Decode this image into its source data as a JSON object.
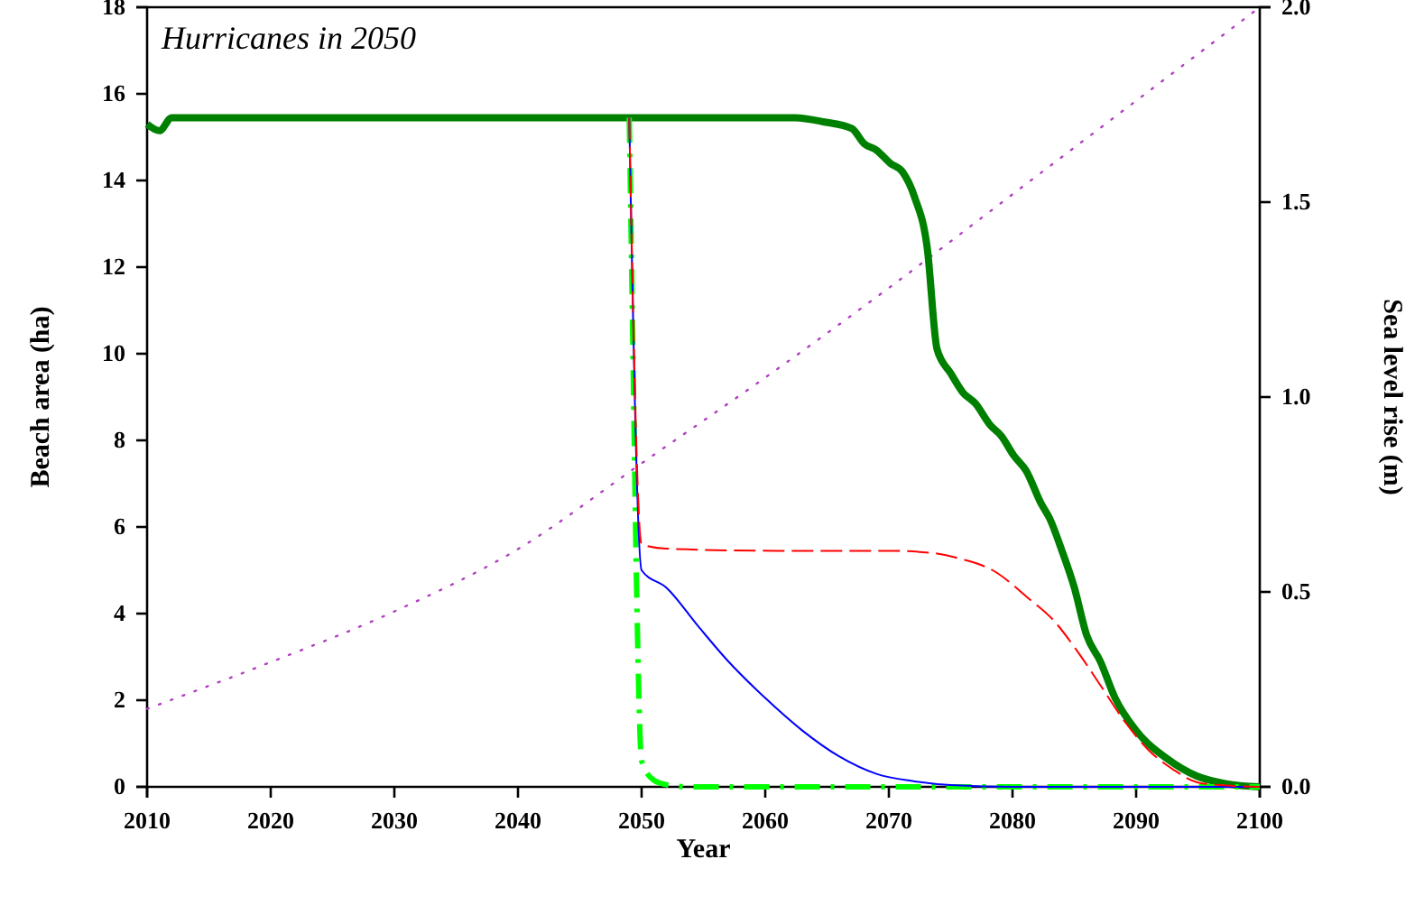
{
  "chart_data": {
    "type": "line",
    "title": "Hurricanes in 2050",
    "xlabel": "Year",
    "ylabel": "Beach area (ha)",
    "y2label": "Sea level rise (m)",
    "xlim": [
      2010,
      2100
    ],
    "xticks": [
      2010,
      2020,
      2030,
      2040,
      2050,
      2060,
      2070,
      2080,
      2090,
      2100
    ],
    "ylim": [
      0,
      18
    ],
    "yticks": [
      0,
      2,
      4,
      6,
      8,
      10,
      12,
      14,
      16,
      18
    ],
    "y2lim": [
      0,
      2
    ],
    "y2ticks": [
      {
        "value": 0,
        "label": "0.0"
      },
      {
        "value": 0.5,
        "label": "0.5"
      },
      {
        "value": 1,
        "label": "1.0"
      },
      {
        "value": 1.5,
        "label": "1.5"
      },
      {
        "value": 2,
        "label": "2.0"
      }
    ],
    "grid": false,
    "series": [
      {
        "color": "#b040c0",
        "axis": "y2",
        "line_style": "dotted",
        "x": [
          2010,
          2020,
          2030,
          2040,
          2050,
          2060,
          2070,
          2080,
          2090,
          2100
        ],
        "values": [
          0.2,
          0.32,
          0.45,
          0.61,
          0.83,
          1.05,
          1.28,
          1.52,
          1.76,
          2.0
        ]
      },
      {
        "color": "#008000",
        "line_style": "solid",
        "x": [
          2010,
          2011,
          2012,
          2062.4,
          2064.8,
          2067,
          2068,
          2069,
          2070.1,
          2071.1,
          2072.1,
          2073.1,
          2073.9,
          2075,
          2076,
          2077,
          2078.2,
          2079.1,
          2080.1,
          2081.1,
          2082.3,
          2083,
          2084,
          2085,
          2086,
          2087.1,
          2088.3,
          2090,
          2092.5,
          2094.9,
          2097.3,
          2100
        ],
        "values": [
          15.3,
          15.15,
          15.45,
          15.45,
          15.35,
          15.2,
          14.85,
          14.7,
          14.4,
          14.2,
          13.6,
          12.45,
          10.1,
          9.55,
          9.1,
          8.85,
          8.35,
          8.1,
          7.65,
          7.3,
          6.55,
          6.2,
          5.45,
          4.6,
          3.5,
          2.9,
          2.05,
          1.3,
          0.65,
          0.25,
          0.07,
          0
        ]
      },
      {
        "color": "#00ff00",
        "line_style": "dashed",
        "x": [
          2049,
          2049.3,
          2049.6,
          2050,
          2051,
          2052,
          2054,
          2100
        ],
        "values": [
          15.45,
          10,
          4.5,
          0.6,
          0.15,
          0.05,
          0,
          0
        ]
      },
      {
        "color": "#0000ff",
        "line_style": "solid",
        "x": [
          2049,
          2050,
          2052,
          2054.6,
          2057,
          2060,
          2063,
          2066,
          2069,
          2072,
          2075,
          2080,
          2100
        ],
        "values": [
          15.45,
          5.0,
          4.6,
          3.7,
          2.9,
          2.05,
          1.3,
          0.7,
          0.3,
          0.13,
          0.04,
          0,
          0
        ]
      },
      {
        "color": "#ff0000",
        "line_style": "dashed",
        "x": [
          2049,
          2050,
          2052,
          2061,
          2070,
          2073.5,
          2076,
          2078.4,
          2081.3,
          2083.3,
          2085.2,
          2087.1,
          2089.1,
          2091,
          2093,
          2095,
          2097.3,
          2100
        ],
        "values": [
          15.45,
          5.6,
          5.5,
          5.45,
          5.45,
          5.4,
          5.25,
          5.0,
          4.35,
          3.85,
          3.15,
          2.35,
          1.5,
          0.85,
          0.4,
          0.1,
          0.03,
          0
        ]
      }
    ]
  }
}
